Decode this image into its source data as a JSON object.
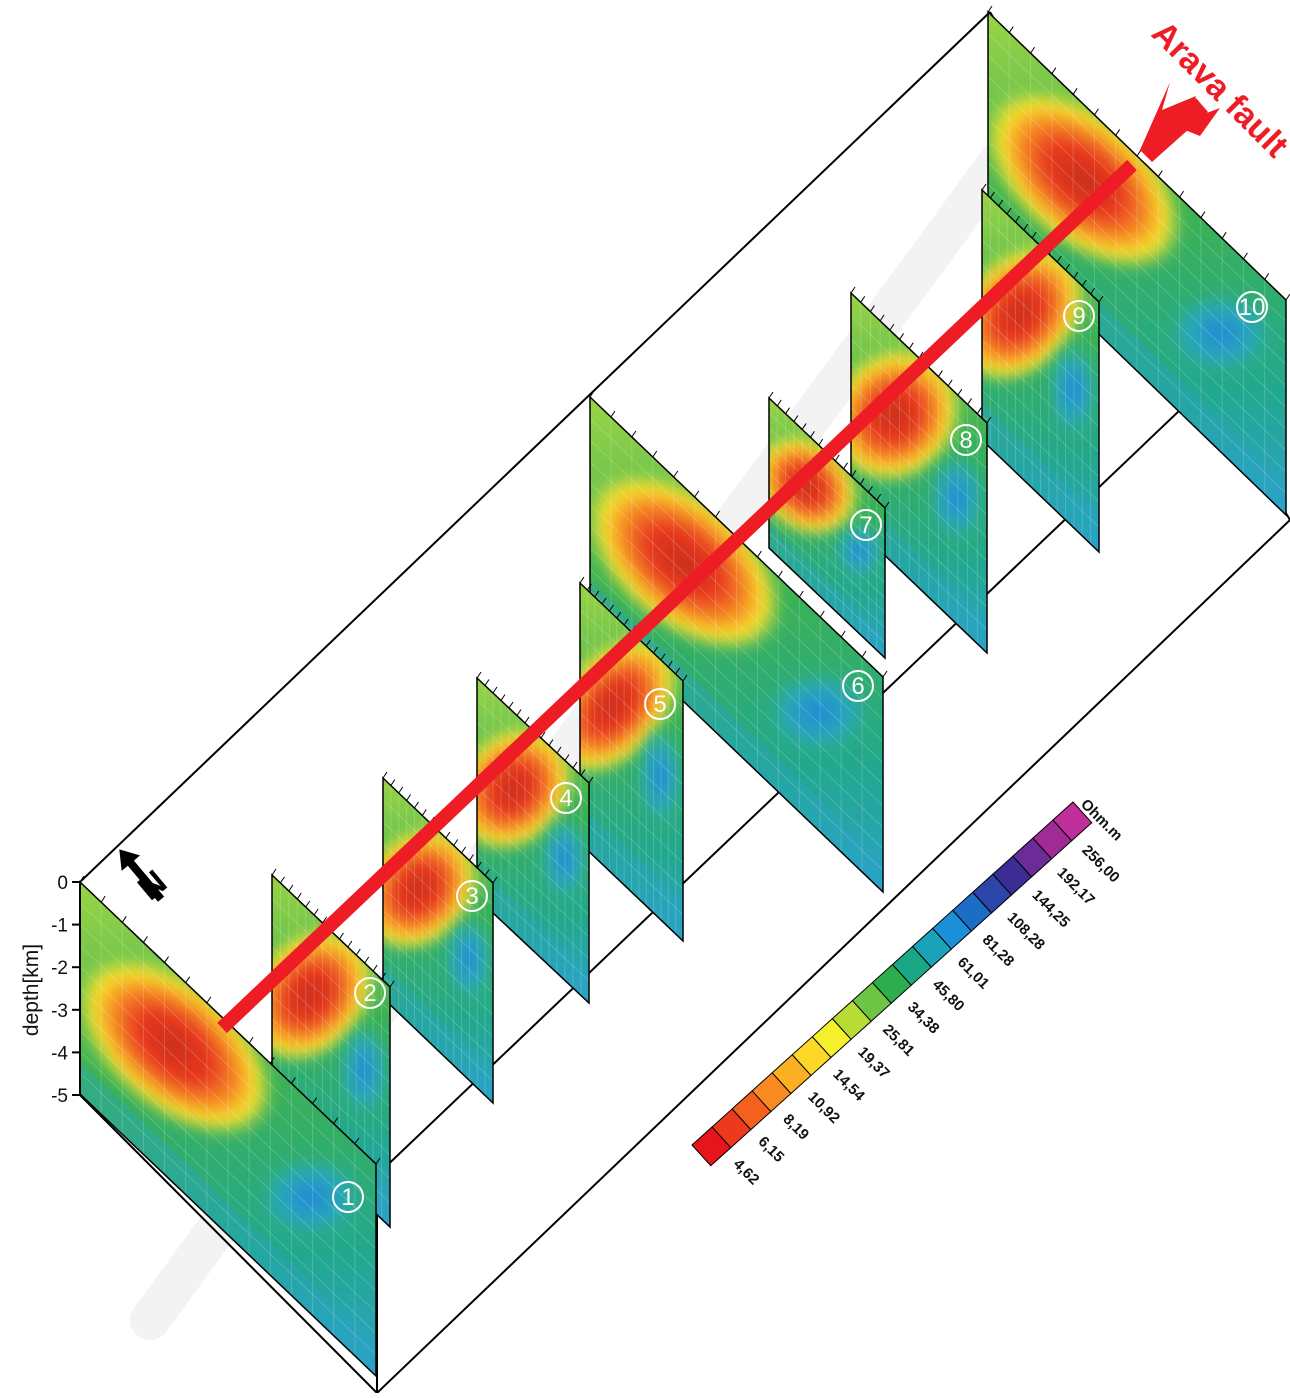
{
  "figure": {
    "fault_label": "Arava fault",
    "depth_axis": {
      "title": "depth[km]",
      "ticks": [
        "0",
        "-1",
        "-2",
        "-3",
        "-4",
        "-5"
      ]
    },
    "north_arrow_label": "N",
    "profiles": [
      "①",
      "②",
      "③",
      "④",
      "⑤",
      "⑥",
      "⑦",
      "⑧",
      "⑨",
      "⑩"
    ]
  },
  "colorbar": {
    "unit": "Ohm.m",
    "labels": [
      "4,62",
      "6,15",
      "8,19",
      "10,92",
      "14,54",
      "19,37",
      "25,81",
      "34,38",
      "45,80",
      "61,01",
      "81,28",
      "108,28",
      "144,25",
      "192,17",
      "256,00"
    ],
    "colors": [
      "#e8141b",
      "#ee3a1c",
      "#f4611e",
      "#f98a22",
      "#fbb024",
      "#fdd828",
      "#f6f02c",
      "#b7dd35",
      "#6ec445",
      "#2cae4f",
      "#19a784",
      "#1aa3b8",
      "#1b8fd8",
      "#1c6dc6",
      "#2b46a8",
      "#3b2c96",
      "#6b2c98",
      "#a12b96",
      "#c02e9b"
    ]
  },
  "colors": {
    "fault": "#ee1c24",
    "frame": "#000000"
  }
}
